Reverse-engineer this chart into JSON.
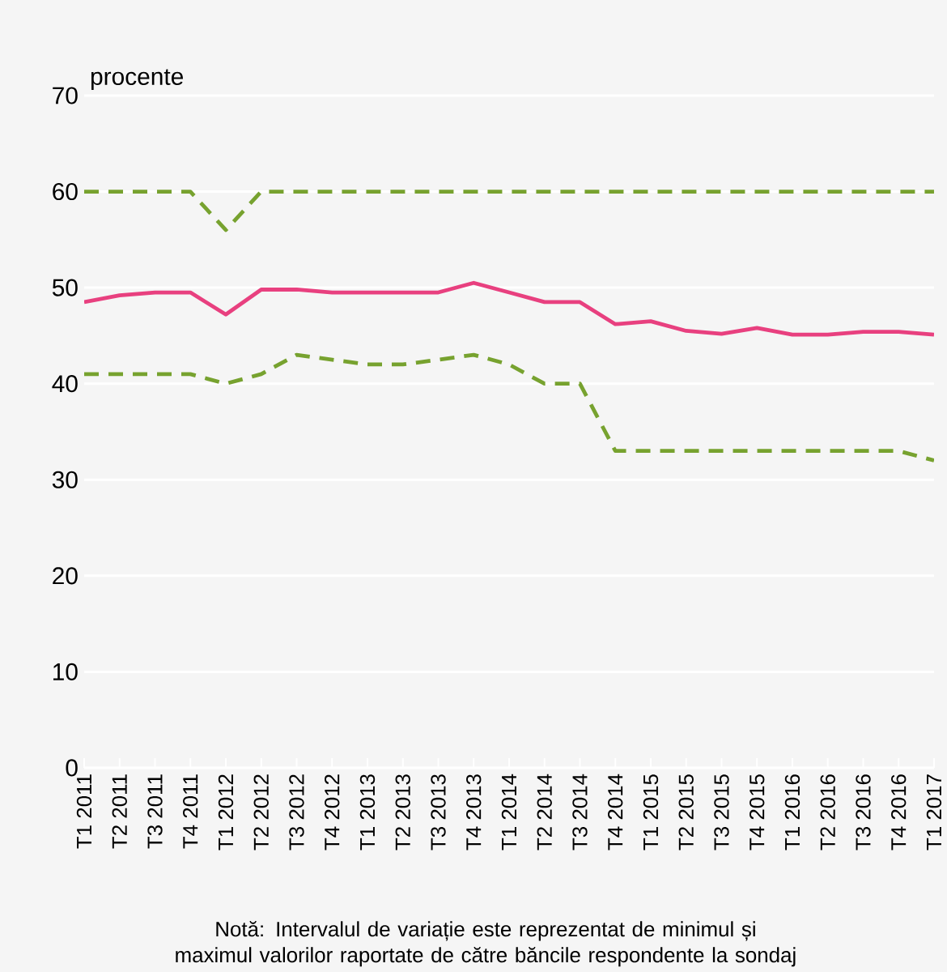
{
  "chart_data": {
    "type": "line",
    "ylabel": "procente",
    "categories": [
      "T1 2011",
      "T2 2011",
      "T3 2011",
      "T4 2011",
      "T1 2012",
      "T2 2012",
      "T3 2012",
      "T4 2012",
      "T1 2013",
      "T2 2013",
      "T3 2013",
      "T4 2013",
      "T1 2014",
      "T2 2014",
      "T3 2014",
      "T4 2014",
      "T1 2015",
      "T2 2015",
      "T3 2015",
      "T4 2015",
      "T1 2016",
      "T2 2016",
      "T3 2016",
      "T4 2016",
      "T1 2017"
    ],
    "series": [
      {
        "color": "#77a22f",
        "line_style": "dashed",
        "values": [
          60,
          60,
          60,
          60,
          56,
          60,
          60,
          60,
          60,
          60,
          60,
          60,
          60,
          60,
          60,
          60,
          60,
          60,
          60,
          60,
          60,
          60,
          60,
          60,
          60
        ]
      },
      {
        "color": "#e8407f",
        "line_style": "solid",
        "values": [
          48.5,
          49.2,
          49.5,
          49.5,
          47.2,
          49.8,
          49.8,
          49.5,
          49.5,
          49.5,
          49.5,
          50.5,
          49.5,
          48.5,
          48.5,
          46.2,
          46.5,
          45.5,
          45.2,
          45.8,
          45.1,
          45.1,
          45.4,
          45.4,
          45.1
        ]
      },
      {
        "color": "#77a22f",
        "line_style": "dashed",
        "values": [
          41,
          41,
          41,
          41,
          40,
          41,
          43,
          42.5,
          42,
          42,
          42.5,
          43,
          42,
          40,
          40,
          33,
          33,
          33,
          33,
          33,
          33,
          33,
          33,
          33,
          32
        ]
      }
    ],
    "ylim": [
      0,
      70
    ],
    "yticks": [
      0,
      10,
      20,
      30,
      40,
      50,
      60,
      70
    ],
    "grid": "y",
    "annotations": [
      "Notă: Intervalul de variație este reprezentat de minimul și maximul valorilor raportate de către băncile respondente la sondaj"
    ]
  }
}
